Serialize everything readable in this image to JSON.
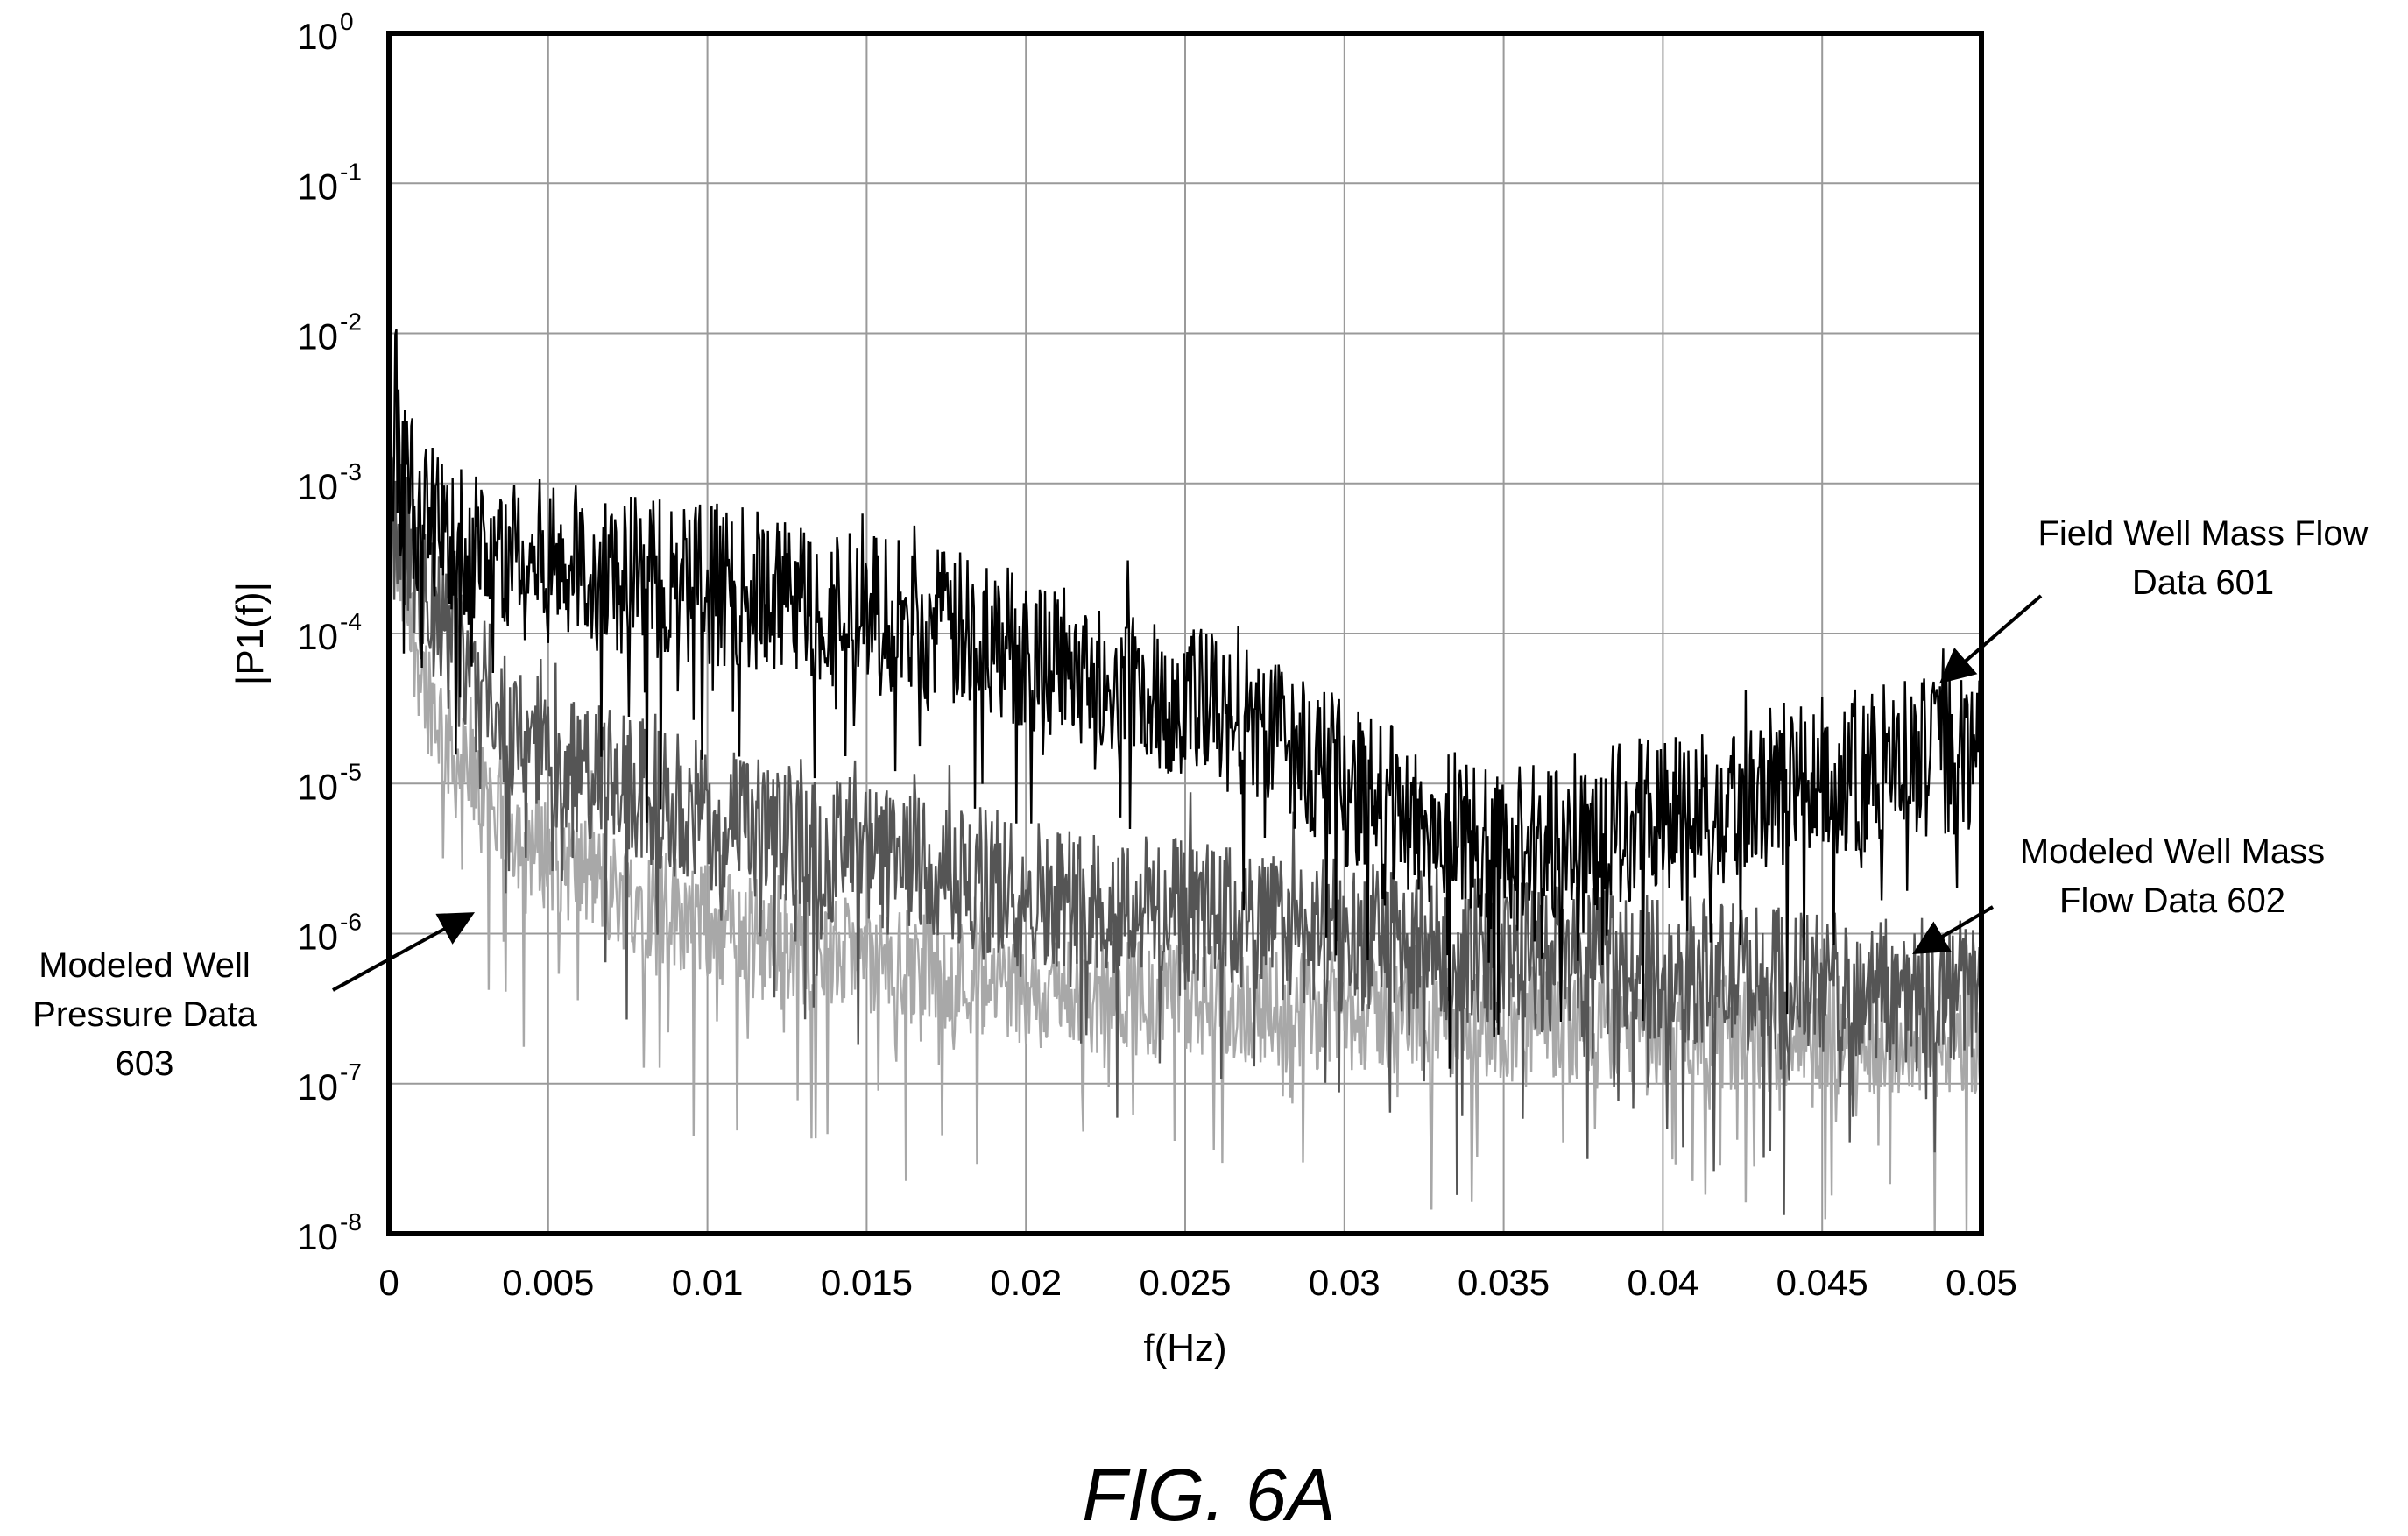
{
  "chart_data": {
    "type": "line",
    "title": "",
    "xlabel": "f(Hz)",
    "ylabel": "|P1(f)|",
    "xlim": [
      0,
      0.05
    ],
    "ylim": [
      1e-08,
      1
    ],
    "y_scale": "log",
    "grid": true,
    "x_ticks": [
      "0",
      "0.005",
      "0.01",
      "0.015",
      "0.02",
      "0.025",
      "0.03",
      "0.035",
      "0.04",
      "0.045",
      "0.05"
    ],
    "y_ticks": [
      {
        "base": "10",
        "exp": "0"
      },
      {
        "base": "10",
        "exp": "-1"
      },
      {
        "base": "10",
        "exp": "-2"
      },
      {
        "base": "10",
        "exp": "-3"
      },
      {
        "base": "10",
        "exp": "-4"
      },
      {
        "base": "10",
        "exp": "-5"
      },
      {
        "base": "10",
        "exp": "-6"
      },
      {
        "base": "10",
        "exp": "-7"
      },
      {
        "base": "10",
        "exp": "-8"
      }
    ],
    "series": [
      {
        "name": "Field Well Mass Flow Data 601",
        "color": "#000000",
        "x": [
          0,
          0.001,
          0.002,
          0.004,
          0.006,
          0.008,
          0.01,
          0.012,
          0.015,
          0.018,
          0.02,
          0.022,
          0.025,
          0.027,
          0.029,
          0.03,
          0.031,
          0.032,
          0.033,
          0.034,
          0.035,
          0.036,
          0.037,
          0.038,
          0.039,
          0.04,
          0.041,
          0.042,
          0.043,
          0.044,
          0.045,
          0.046,
          0.047,
          0.048,
          0.049,
          0.05
        ],
        "y": [
          0.002,
          0.0006,
          0.0004,
          0.00032,
          0.00028,
          0.00025,
          0.00022,
          0.00018,
          0.00014,
          0.0001,
          8e-05,
          6e-05,
          3.5e-05,
          2.5e-05,
          1.5e-05,
          1e-05,
          8e-06,
          6e-06,
          5e-06,
          4.5e-06,
          4e-06,
          4.2e-06,
          4.5e-06,
          5e-06,
          5.5e-06,
          6e-06,
          7e-06,
          8e-06,
          9e-06,
          1e-05,
          1.1e-05,
          1.2e-05,
          1.3e-05,
          1.4e-05,
          1.6e-05,
          1.5e-05
        ]
      },
      {
        "name": "Modeled Well Mass Flow Data 602",
        "color": "#555555",
        "x": [
          0,
          0.001,
          0.002,
          0.003,
          0.005,
          0.007,
          0.01,
          0.013,
          0.016,
          0.02,
          0.024,
          0.028,
          0.032,
          0.036,
          0.04,
          0.045,
          0.05
        ],
        "y": [
          0.001,
          0.00018,
          8e-05,
          4e-05,
          1.5e-05,
          1e-05,
          6e-06,
          4e-06,
          2.8e-06,
          2e-06,
          1.5e-06,
          1.1e-06,
          9e-07,
          7e-07,
          6e-07,
          4.5e-07,
          4e-07
        ]
      },
      {
        "name": "Modeled Well Pressure Data 603",
        "color": "#a8a8a8",
        "x": [
          0,
          0.001,
          0.002,
          0.003,
          0.004,
          0.005,
          0.007,
          0.01,
          0.013,
          0.016,
          0.02,
          0.025,
          0.03,
          0.035,
          0.04,
          0.045,
          0.05
        ],
        "y": [
          0.0005,
          6e-05,
          1.5e-05,
          8e-06,
          5e-06,
          3.5e-06,
          2e-06,
          1.2e-06,
          8e-07,
          6e-07,
          4.5e-07,
          3.5e-07,
          3e-07,
          2.6e-07,
          2.3e-07,
          2.1e-07,
          2e-07
        ]
      }
    ],
    "annotations": [
      {
        "lines": [
          "Field Well Mass Flow",
          "Data 601"
        ],
        "series": 0
      },
      {
        "lines": [
          "Modeled Well Mass",
          "Flow Data 602"
        ],
        "series": 1
      },
      {
        "lines": [
          "Modeled Well",
          "Pressure Data",
          "603"
        ],
        "series": 2
      }
    ]
  },
  "figure_caption": "FIG. 6A"
}
